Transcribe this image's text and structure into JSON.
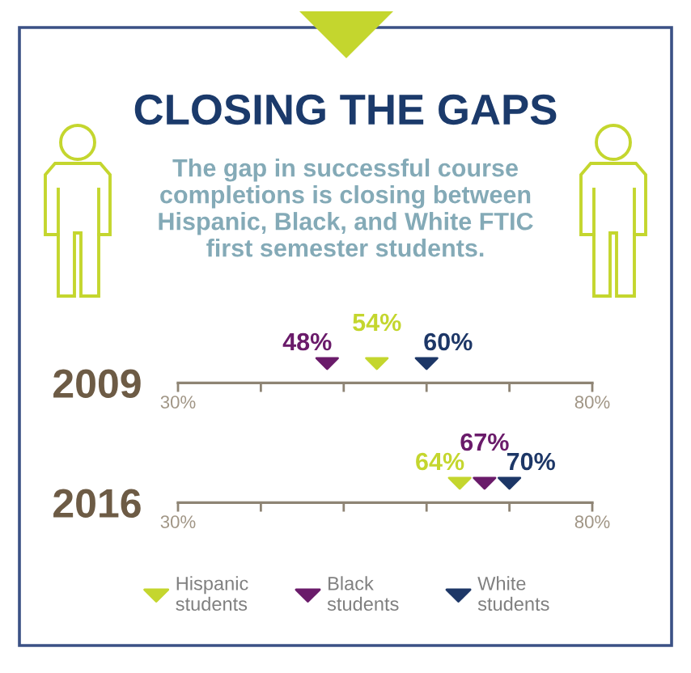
{
  "chart_data": [
    {
      "type": "scatter",
      "title": "CLOSING THE GAPS",
      "subtitle": "The gap in successful course completions is closing between Hispanic, Black, and White FTIC first semester students.",
      "orientation": "horizontal",
      "categories": [
        "2009"
      ],
      "xlim": [
        30,
        80
      ],
      "xticks": [
        {
          "value": 30,
          "label": "30%"
        },
        {
          "value": 40,
          "label": null
        },
        {
          "value": 50,
          "label": null
        },
        {
          "value": 60,
          "label": null
        },
        {
          "value": 70,
          "label": null
        },
        {
          "value": 80,
          "label": "80%"
        }
      ],
      "marker": "triangle",
      "legend": "bottom",
      "series": [
        {
          "name": "Hispanic students",
          "color": "#c4d62e",
          "values": [
            54
          ],
          "value_labels": [
            "54%"
          ]
        },
        {
          "name": "Black students",
          "color": "#6a1b6a",
          "values": [
            48
          ],
          "value_labels": [
            "48%"
          ]
        },
        {
          "name": "White students",
          "color": "#1d3767",
          "values": [
            60
          ],
          "value_labels": [
            "60%"
          ]
        }
      ]
    },
    {
      "type": "scatter",
      "orientation": "horizontal",
      "categories": [
        "2016"
      ],
      "xlim": [
        30,
        80
      ],
      "xticks": [
        {
          "value": 30,
          "label": "30%"
        },
        {
          "value": 40,
          "label": null
        },
        {
          "value": 50,
          "label": null
        },
        {
          "value": 60,
          "label": null
        },
        {
          "value": 70,
          "label": null
        },
        {
          "value": 80,
          "label": "80%"
        }
      ],
      "marker": "triangle",
      "legend": "bottom",
      "series": [
        {
          "name": "Hispanic students",
          "color": "#c4d62e",
          "values": [
            64
          ],
          "value_labels": [
            "64%"
          ]
        },
        {
          "name": "Black students",
          "color": "#6a1b6a",
          "values": [
            67
          ],
          "value_labels": [
            "67%"
          ]
        },
        {
          "name": "White students",
          "color": "#1d3767",
          "values": [
            70
          ],
          "value_labels": [
            "70%"
          ]
        }
      ]
    }
  ]
}
